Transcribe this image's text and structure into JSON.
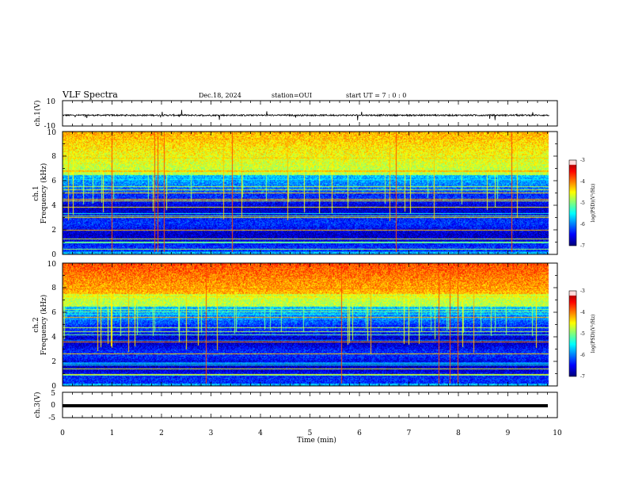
{
  "header": {
    "title": "VLF Spectra",
    "date": "Dec.18, 2024",
    "station": "station=OUI",
    "start": "start  UT =   7 : 0  : 0"
  },
  "chart_data": [
    {
      "type": "line",
      "name": "ch1-waveform",
      "ylabel": "ch.1(V)",
      "ylim": [
        -10,
        10
      ],
      "ytick_labels": [
        "10",
        "-10"
      ],
      "xlim": [
        0,
        10
      ],
      "description_values": {
        "baseline_v": -1.5,
        "noise_v": 0.6,
        "data_end_min": 9.83
      }
    },
    {
      "type": "heatmap",
      "name": "ch1-spectrogram",
      "ylabel_lines": [
        "ch.1",
        "Frequency (kHz)"
      ],
      "ylim": [
        0,
        10
      ],
      "ytick_labels": [
        "0",
        "2",
        "4",
        "6",
        "8",
        "10"
      ],
      "xlim": [
        0,
        10
      ],
      "colorbar": {
        "label": "log(PSD)(V²/Hz)",
        "range": [
          -7,
          -3
        ],
        "tick_labels": [
          "-3",
          "-4",
          "-5",
          "-6",
          "-7"
        ]
      }
    },
    {
      "type": "heatmap",
      "name": "ch2-spectrogram",
      "ylabel_lines": [
        "ch.2",
        "Frequency (kHz)"
      ],
      "ylim": [
        0,
        10
      ],
      "ytick_labels": [
        "0",
        "2",
        "4",
        "6",
        "8",
        "10"
      ],
      "xlim": [
        0,
        10
      ],
      "colorbar": {
        "label": "log(PSD)(V²/Hz)",
        "range": [
          -7,
          -3
        ],
        "tick_labels": [
          "-3",
          "-4",
          "-5",
          "-6",
          "-7"
        ]
      }
    },
    {
      "type": "line",
      "name": "ch3-waveform",
      "ylabel": "ch.3(V)",
      "ylim": [
        -5,
        5
      ],
      "ytick_labels": [
        "5",
        "0",
        "-5"
      ],
      "xlim": [
        0,
        10
      ],
      "description_values": {
        "level_v": -1.5
      }
    }
  ],
  "xaxis": {
    "label": "Time (min)",
    "tick_labels": [
      "0",
      "1",
      "2",
      "3",
      "4",
      "5",
      "6",
      "7",
      "8",
      "9",
      "10"
    ]
  },
  "colors": {
    "trace": "#000000",
    "axis": "#000000",
    "colormap": [
      "#00007f",
      "#0000ff",
      "#0080ff",
      "#00ffff",
      "#00ff80",
      "#80ff00",
      "#ffff00",
      "#ff8000",
      "#ff0000",
      "#ffffff"
    ]
  }
}
